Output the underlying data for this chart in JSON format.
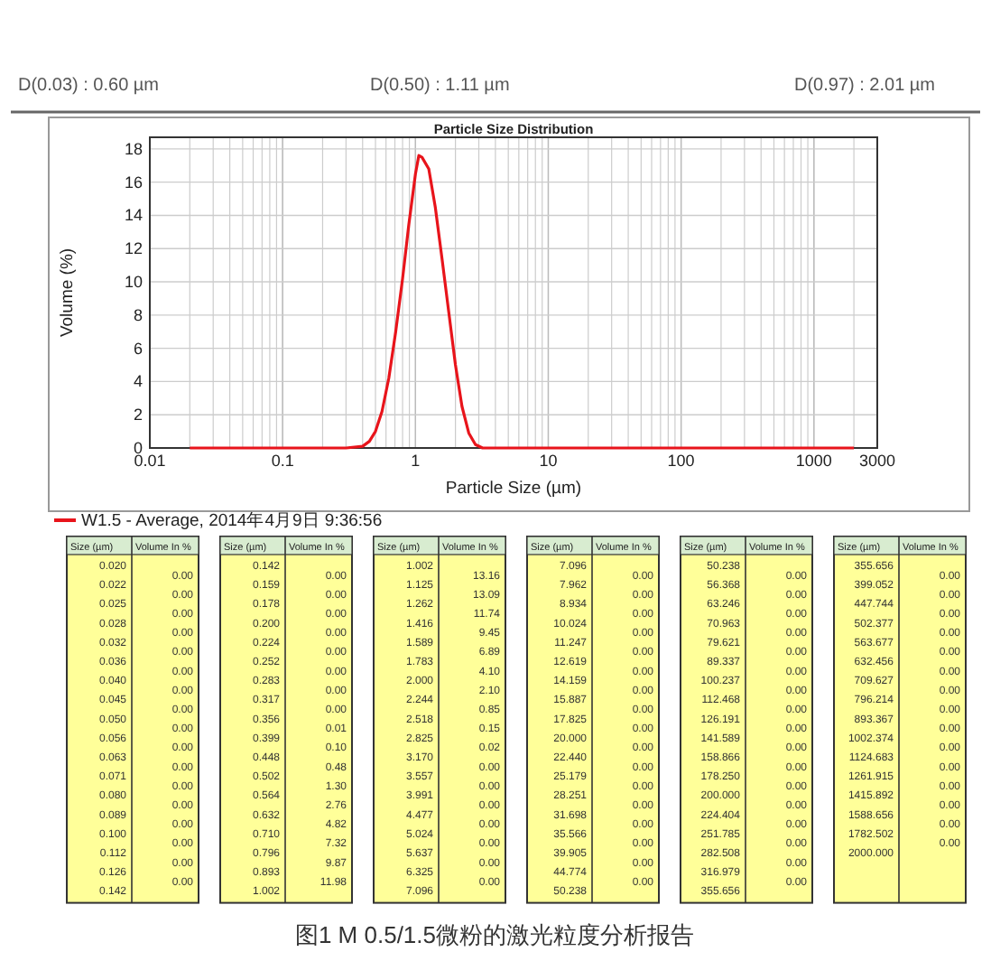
{
  "chart_data": [
    {
      "type": "line",
      "title": "Particle Size Distribution",
      "xlabel": "Particle Size (µm)",
      "ylabel": "Volume (%)",
      "series": [
        {
          "name": "W1.5 - Average, 2014年4月9日  9:36:56",
          "color": "#e8141b",
          "x": [
            0.02,
            0.3,
            0.4,
            0.45,
            0.5,
            0.56,
            0.63,
            0.71,
            0.8,
            0.89,
            1.0,
            1.06,
            1.12,
            1.26,
            1.41,
            1.59,
            1.78,
            2.0,
            2.24,
            2.52,
            2.83,
            3.2,
            2000
          ],
          "values": [
            0,
            0,
            0.1,
            0.4,
            1.0,
            2.2,
            4.2,
            7.0,
            10.2,
            13.4,
            16.5,
            17.6,
            17.5,
            16.8,
            14.5,
            11.3,
            8.2,
            5.0,
            2.5,
            0.9,
            0.2,
            0,
            0
          ]
        }
      ],
      "xlim": [
        0.01,
        3000
      ],
      "xticks": [
        0.01,
        0.1,
        1,
        10,
        100,
        1000,
        3000
      ],
      "ylim": [
        0,
        18.7
      ],
      "yticks": [
        0,
        2,
        4,
        6,
        8,
        10,
        12,
        14,
        16,
        18
      ],
      "log": "x",
      "grid": true,
      "legend": "bottom left",
      "annotations": [
        "D(0.03) : 0.60 µm",
        "D(0.50) : 1.11 µm",
        "D(0.97) : 2.01 µm",
        "图1 M 0.5/1.5微粉的激光粒度分析报告"
      ]
    },
    {
      "type": "other",
      "xlabel": "Size (µm)",
      "ylabel": "Volume In %",
      "categories": [
        "0.020",
        "0.022",
        "0.025",
        "0.028",
        "0.032",
        "0.036",
        "0.040",
        "0.045",
        "0.050",
        "0.056",
        "0.063",
        "0.071",
        "0.080",
        "0.089",
        "0.100",
        "0.112",
        "0.126",
        "0.142",
        "0.159",
        "0.178",
        "0.200",
        "0.224",
        "0.252",
        "0.283",
        "0.317",
        "0.356",
        "0.399",
        "0.448",
        "0.502",
        "0.564",
        "0.632",
        "0.710",
        "0.796",
        "0.893",
        "1.002",
        "1.125",
        "1.262",
        "1.416",
        "1.589",
        "1.783",
        "2.000",
        "2.244",
        "2.518",
        "2.825",
        "3.170",
        "3.557",
        "3.991",
        "4.477",
        "5.024",
        "5.637",
        "6.325",
        "7.096",
        "7.962",
        "8.934",
        "10.024",
        "11.247",
        "12.619",
        "14.159",
        "15.887",
        "17.825",
        "20.000",
        "22.440",
        "25.179",
        "28.251",
        "31.698",
        "35.566",
        "39.905",
        "44.774",
        "50.238",
        "56.368",
        "63.246",
        "70.963",
        "79.621",
        "89.337",
        "100.237",
        "112.468",
        "126.191",
        "141.589",
        "158.866",
        "178.250",
        "200.000",
        "224.404",
        "251.785",
        "282.508",
        "316.979",
        "355.656",
        "399.052",
        "447.744",
        "502.377",
        "563.677",
        "632.456",
        "709.627",
        "796.214",
        "893.367",
        "1002.374",
        "1124.683",
        "1261.915",
        "1415.892",
        "1588.656",
        "1782.502",
        "2000.000"
      ],
      "value_labels": [
        "0.00",
        "0.00",
        "0.00",
        "0.00",
        "0.00",
        "0.00",
        "0.00",
        "0.00",
        "0.00",
        "0.00",
        "0.00",
        "0.00",
        "0.00",
        "0.00",
        "0.00",
        "0.00",
        "0.00",
        "0.00",
        "0.00",
        "0.00",
        "0.00",
        "0.00",
        "0.00",
        "0.00",
        "0.00",
        "0.01",
        "0.10",
        "0.48",
        "1.30",
        "2.76",
        "4.82",
        "7.32",
        "9.87",
        "11.98",
        "13.16",
        "13.09",
        "11.74",
        "9.45",
        "6.89",
        "4.10",
        "2.10",
        "0.85",
        "0.15",
        "0.02",
        "0.00",
        "0.00",
        "0.00",
        "0.00",
        "0.00",
        "0.00",
        "0.00",
        "0.00",
        "0.00",
        "0.00",
        "0.00",
        "0.00",
        "0.00",
        "0.00",
        "0.00",
        "0.00",
        "0.00",
        "0.00",
        "0.00",
        "0.00",
        "0.00",
        "0.00",
        "0.00",
        "0.00",
        "0.00",
        "0.00",
        "0.00",
        "0.00",
        "0.00",
        "0.00",
        "0.00",
        "0.00",
        "0.00",
        "0.00",
        "0.00",
        "0.00",
        "0.00",
        "0.00",
        "0.00",
        "0.00",
        "0.00",
        "0.00",
        "0.00",
        "0.00",
        "0.00",
        "0.00",
        "0.00",
        "0.00",
        "0.00",
        "0.00",
        "0.00",
        "0.00",
        "0.00",
        "0.00",
        "0.00",
        "0.00"
      ]
    }
  ]
}
